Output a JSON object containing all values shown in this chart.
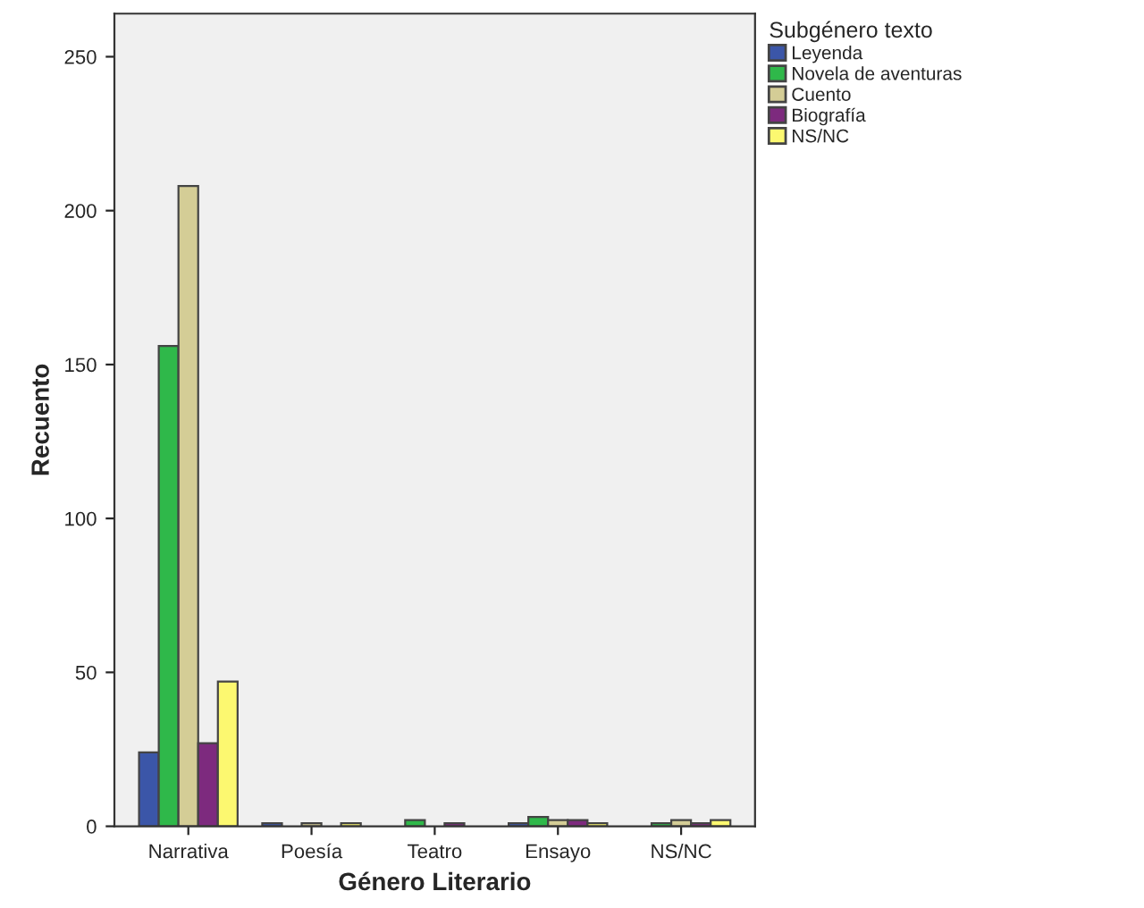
{
  "chart_data": {
    "type": "bar",
    "xlabel": "Género Literario",
    "ylabel": "Recuento",
    "legend_title": "Subgénero texto",
    "categories": [
      "Narrativa",
      "Poesía",
      "Teatro",
      "Ensayo",
      "NS/NC"
    ],
    "series": [
      {
        "name": "Leyenda",
        "color": "#3b56a8",
        "values": [
          24,
          1,
          null,
          1,
          null
        ]
      },
      {
        "name": "Novela de aventuras",
        "color": "#2fb84a",
        "values": [
          156,
          null,
          2,
          3,
          1
        ]
      },
      {
        "name": "Cuento",
        "color": "#d4cd96",
        "values": [
          208,
          1,
          null,
          2,
          2
        ]
      },
      {
        "name": "Biografía",
        "color": "#7d2a7e",
        "values": [
          27,
          null,
          1,
          2,
          1
        ]
      },
      {
        "name": "NS/NC",
        "color": "#fcf870",
        "values": [
          47,
          1,
          null,
          1,
          2
        ]
      }
    ],
    "ylim": [
      0,
      264
    ],
    "yticks": [
      0,
      50,
      100,
      150,
      200,
      250
    ],
    "grid": false,
    "legend": "top right"
  }
}
